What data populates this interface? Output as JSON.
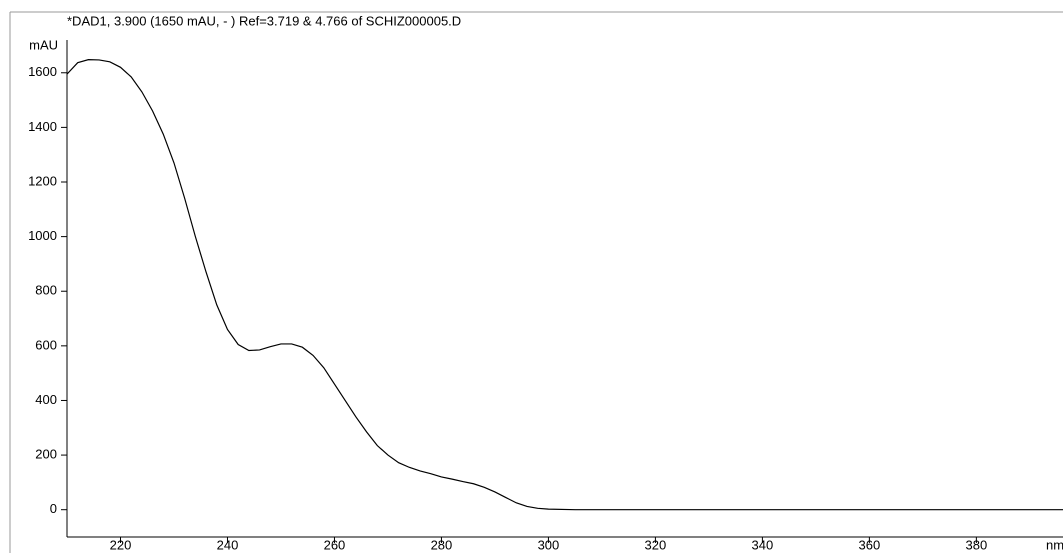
{
  "chart_data": {
    "type": "line",
    "title": "*DAD1, 3.900 (1650 mAU, - ) Ref=3.719 & 4.766 of SCHIZ000005.D",
    "y_label": "mAU",
    "x_label": "nm",
    "x": [
      210,
      212,
      214,
      216,
      218,
      220,
      222,
      224,
      226,
      228,
      230,
      232,
      234,
      236,
      238,
      240,
      242,
      244,
      246,
      248,
      250,
      252,
      254,
      256,
      258,
      260,
      262,
      264,
      266,
      268,
      270,
      272,
      274,
      276,
      278,
      280,
      282,
      284,
      286,
      288,
      290,
      292,
      294,
      296,
      298,
      300,
      305,
      399
    ],
    "y": [
      1595,
      1637,
      1648,
      1647,
      1640,
      1620,
      1585,
      1530,
      1460,
      1375,
      1270,
      1140,
      1000,
      870,
      750,
      660,
      605,
      583,
      585,
      597,
      607,
      607,
      595,
      565,
      520,
      460,
      400,
      340,
      285,
      235,
      200,
      172,
      155,
      142,
      132,
      120,
      112,
      103,
      95,
      82,
      65,
      45,
      25,
      12,
      5,
      2,
      0,
      0
    ],
    "color": "#000000",
    "xlim": [
      210,
      399
    ],
    "ylim": [
      -100,
      1720
    ],
    "xticks": [
      220,
      240,
      260,
      280,
      300,
      320,
      340,
      360,
      380
    ],
    "yticks": [
      0,
      200,
      400,
      600,
      800,
      1000,
      1200,
      1400,
      1600
    ]
  }
}
